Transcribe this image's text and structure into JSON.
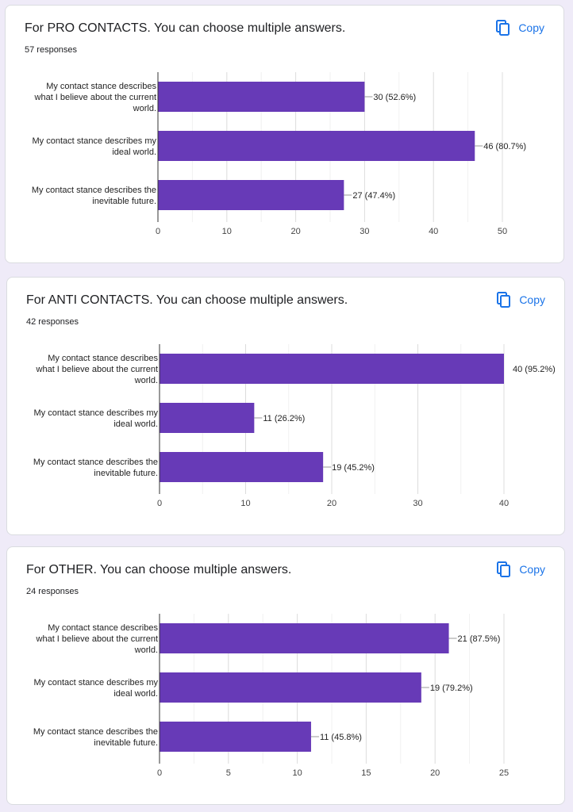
{
  "copy_label": "Copy",
  "colors": {
    "bar": "#673ab7",
    "accent": "#1a73e8"
  },
  "cards": [
    {
      "title": "For PRO CONTACTS. You can choose multiple answers.",
      "responses": "57 responses"
    },
    {
      "title": "For ANTI CONTACTS. You can choose multiple answers.",
      "responses": "42 responses"
    },
    {
      "title": "For OTHER. You can choose multiple answers.",
      "responses": "24 responses"
    }
  ],
  "chart_data": [
    {
      "type": "bar",
      "orientation": "horizontal",
      "categories": [
        [
          "My contact stance describes",
          "what I believe about the current",
          "world."
        ],
        [
          "My contact stance describes my",
          "ideal world."
        ],
        [
          "My contact stance describes the",
          "inevitable future."
        ]
      ],
      "values": [
        30,
        46,
        27
      ],
      "labels": [
        "30 (52.6%)",
        "46 (80.7%)",
        "27 (47.4%)"
      ],
      "xlim": [
        0,
        50
      ],
      "ticks": [
        0,
        10,
        20,
        30,
        40,
        50
      ],
      "grid": true
    },
    {
      "type": "bar",
      "orientation": "horizontal",
      "categories": [
        [
          "My contact stance describes",
          "what I believe about the current",
          "world."
        ],
        [
          "My contact stance describes my",
          "ideal world."
        ],
        [
          "My contact stance describes the",
          "inevitable future."
        ]
      ],
      "values": [
        40,
        11,
        19
      ],
      "labels": [
        "40 (95.2%)",
        "11 (26.2%)",
        "19 (45.2%)"
      ],
      "xlim": [
        0,
        40
      ],
      "ticks": [
        0,
        10,
        20,
        30,
        40
      ],
      "grid": true
    },
    {
      "type": "bar",
      "orientation": "horizontal",
      "categories": [
        [
          "My contact stance describes",
          "what I believe about the current",
          "world."
        ],
        [
          "My contact stance describes my",
          "ideal world."
        ],
        [
          "My contact stance describes the",
          "inevitable future."
        ]
      ],
      "values": [
        21,
        19,
        11
      ],
      "labels": [
        "21 (87.5%)",
        "19 (79.2%)",
        "11 (45.8%)"
      ],
      "xlim": [
        0,
        25
      ],
      "ticks": [
        0,
        5,
        10,
        15,
        20,
        25
      ],
      "grid": true
    }
  ]
}
